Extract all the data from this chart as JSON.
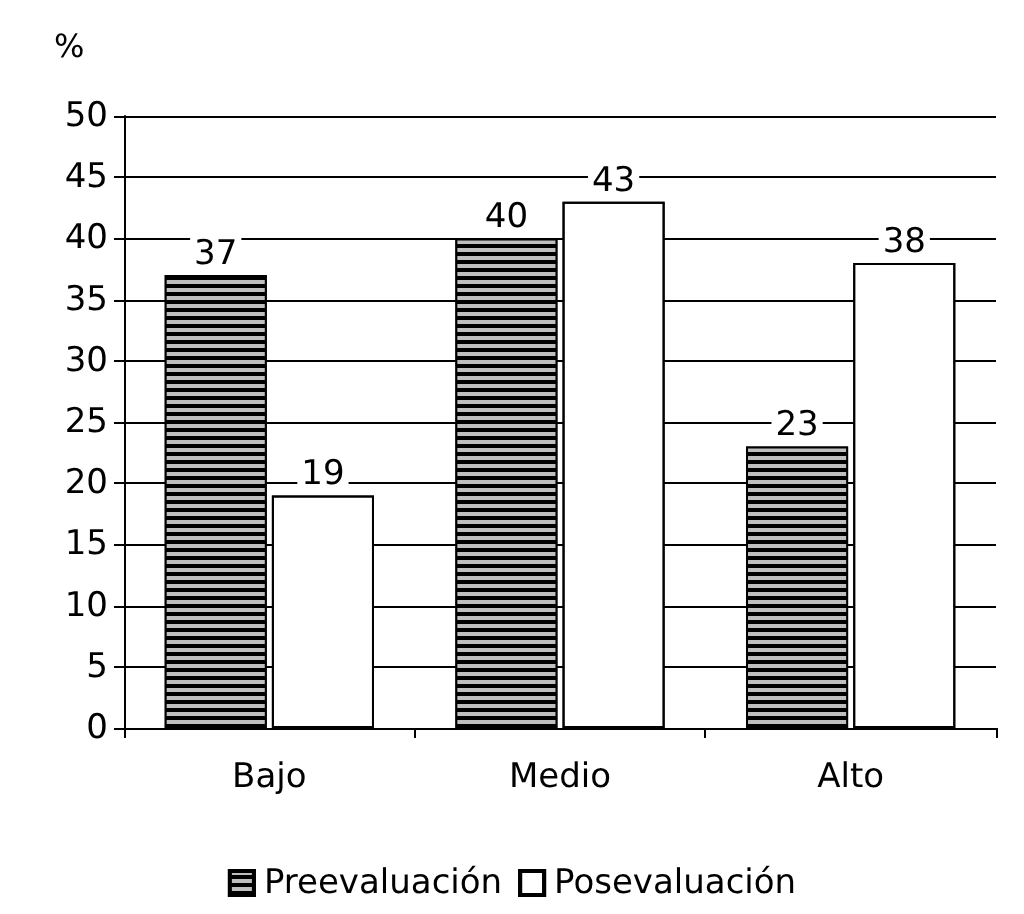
{
  "chart_data": {
    "type": "bar",
    "ylabel": "%",
    "categories": [
      "Bajo",
      "Medio",
      "Alto"
    ],
    "series": [
      {
        "name": "Preevaluación",
        "color": "#000000",
        "values": [
          37,
          40,
          23
        ]
      },
      {
        "name": "Posevaluación",
        "color": "#ffffff",
        "values": [
          19,
          43,
          38
        ]
      }
    ],
    "ylim": [
      0,
      50
    ],
    "yticks": [
      0,
      5,
      10,
      15,
      20,
      25,
      30,
      35,
      40,
      45,
      50
    ],
    "grid": "y",
    "legend": "bottom",
    "data_labels": true
  }
}
